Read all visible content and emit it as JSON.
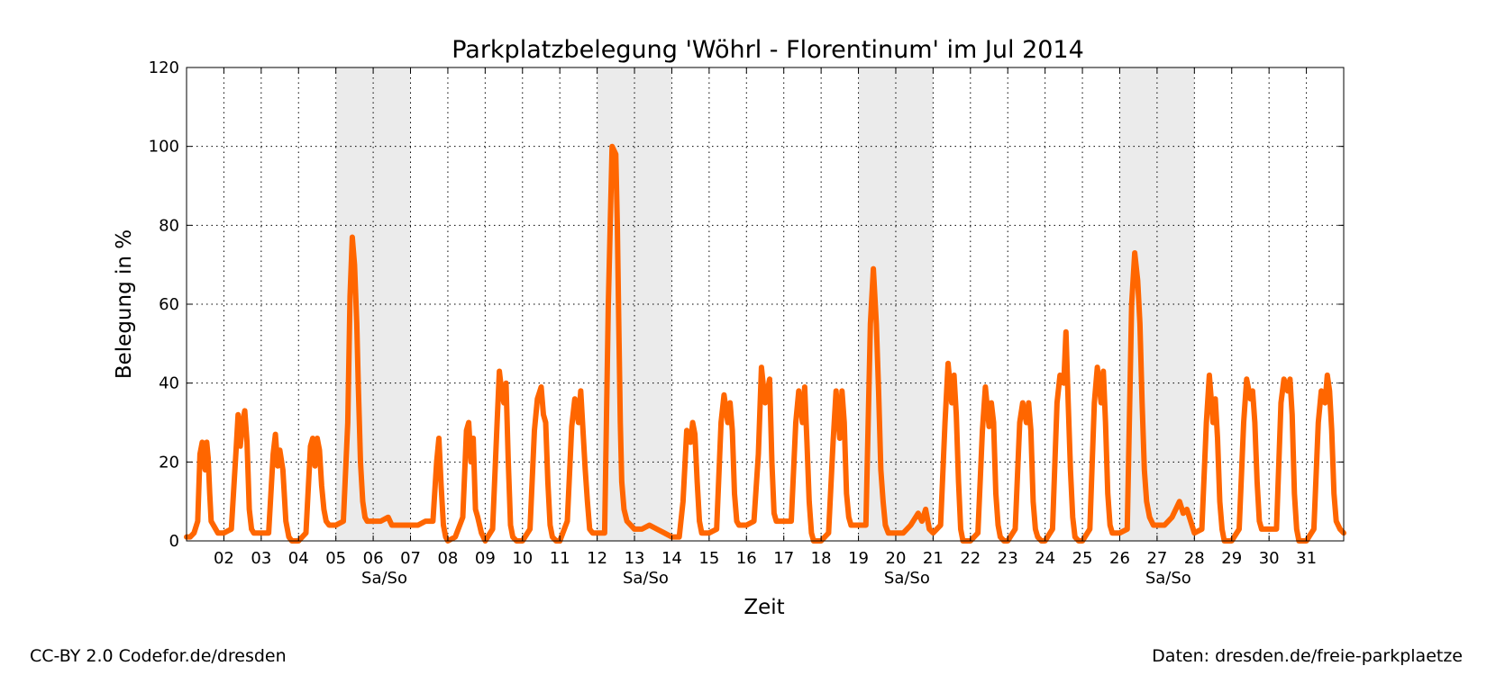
{
  "chart_data": {
    "type": "line",
    "title": "Parkplatzbelegung 'Wöhrl - Florentinum' im Jul 2014",
    "xlabel": "Zeit",
    "ylabel": "Belegung in %",
    "xlim": [
      1,
      32
    ],
    "ylim": [
      0,
      120
    ],
    "y_ticks": [
      0,
      20,
      40,
      60,
      80,
      100,
      120
    ],
    "x_tick_days": [
      2,
      3,
      4,
      5,
      6,
      7,
      8,
      9,
      10,
      11,
      12,
      13,
      14,
      15,
      16,
      17,
      18,
      19,
      20,
      21,
      22,
      23,
      24,
      25,
      26,
      27,
      28,
      29,
      30,
      31
    ],
    "x_tick_labels": [
      "02",
      "03",
      "04",
      "05",
      "06",
      "07",
      "08",
      "09",
      "10",
      "11",
      "12",
      "13",
      "14",
      "15",
      "16",
      "17",
      "18",
      "19",
      "20",
      "21",
      "22",
      "23",
      "24",
      "25",
      "26",
      "27",
      "28",
      "29",
      "30",
      "31"
    ],
    "grid": true,
    "weekend_label": "Sa/So",
    "weekends": [
      {
        "start": 5,
        "end": 7,
        "label_day": 6.3
      },
      {
        "start": 12,
        "end": 14,
        "label_day": 13.3
      },
      {
        "start": 19,
        "end": 21,
        "label_day": 20.3
      },
      {
        "start": 26,
        "end": 28,
        "label_day": 27.3
      }
    ],
    "series": [
      {
        "color": "#ff6600",
        "x": [
          1.0,
          1.1,
          1.2,
          1.3,
          1.36,
          1.42,
          1.46,
          1.5,
          1.54,
          1.58,
          1.62,
          1.66,
          1.72,
          1.78,
          1.84,
          1.92,
          2.0,
          2.2,
          2.32,
          2.38,
          2.44,
          2.5,
          2.56,
          2.62,
          2.68,
          2.74,
          2.8,
          2.9,
          3.0,
          3.2,
          3.32,
          3.38,
          3.44,
          3.5,
          3.58,
          3.66,
          3.74,
          3.82,
          3.92,
          4.0,
          4.2,
          4.32,
          4.38,
          4.44,
          4.5,
          4.56,
          4.62,
          4.68,
          4.74,
          4.82,
          4.92,
          5.0,
          5.2,
          5.32,
          5.38,
          5.44,
          5.5,
          5.56,
          5.6,
          5.66,
          5.72,
          5.78,
          5.84,
          5.9,
          6.0,
          6.2,
          6.4,
          6.5,
          6.56,
          6.62,
          6.7,
          6.8,
          7.0,
          7.2,
          7.4,
          7.6,
          7.7,
          7.76,
          7.82,
          7.88,
          7.94,
          8.0,
          8.2,
          8.4,
          8.5,
          8.56,
          8.62,
          8.68,
          8.74,
          8.8,
          8.9,
          9.0,
          9.2,
          9.32,
          9.38,
          9.44,
          9.5,
          9.56,
          9.62,
          9.68,
          9.74,
          9.84,
          9.92,
          10.0,
          10.2,
          10.32,
          10.4,
          10.5,
          10.56,
          10.62,
          10.68,
          10.74,
          10.8,
          10.9,
          11.0,
          11.2,
          11.32,
          11.4,
          11.5,
          11.56,
          11.62,
          11.68,
          11.74,
          11.8,
          11.88,
          11.96,
          12.0,
          12.2,
          12.3,
          12.4,
          12.5,
          12.54,
          12.58,
          12.62,
          12.66,
          12.72,
          12.8,
          12.9,
          13.0,
          13.2,
          13.4,
          13.6,
          13.8,
          14.0,
          14.2,
          14.3,
          14.4,
          14.5,
          14.56,
          14.62,
          14.68,
          14.74,
          14.8,
          14.9,
          15.0,
          15.2,
          15.32,
          15.4,
          15.5,
          15.56,
          15.62,
          15.68,
          15.74,
          15.8,
          15.9,
          16.0,
          16.2,
          16.32,
          16.4,
          16.5,
          16.56,
          16.62,
          16.68,
          16.74,
          16.8,
          16.9,
          17.0,
          17.2,
          17.32,
          17.4,
          17.5,
          17.56,
          17.62,
          17.68,
          17.74,
          17.8,
          17.9,
          18.0,
          18.2,
          18.32,
          18.4,
          18.5,
          18.56,
          18.62,
          18.68,
          18.74,
          18.8,
          18.9,
          19.0,
          19.2,
          19.32,
          19.4,
          19.48,
          19.54,
          19.6,
          19.66,
          19.72,
          19.8,
          19.9,
          20.0,
          20.2,
          20.4,
          20.6,
          20.7,
          20.8,
          20.9,
          21.0,
          21.2,
          21.32,
          21.4,
          21.5,
          21.56,
          21.62,
          21.68,
          21.74,
          21.8,
          21.9,
          22.0,
          22.2,
          22.32,
          22.4,
          22.5,
          22.56,
          22.62,
          22.68,
          22.74,
          22.8,
          22.9,
          23.0,
          23.2,
          23.32,
          23.4,
          23.5,
          23.56,
          23.62,
          23.68,
          23.74,
          23.8,
          23.9,
          24.0,
          24.2,
          24.32,
          24.4,
          24.5,
          24.56,
          24.62,
          24.68,
          24.74,
          24.8,
          24.9,
          25.0,
          25.2,
          25.32,
          25.4,
          25.5,
          25.56,
          25.62,
          25.68,
          25.74,
          25.8,
          25.9,
          26.0,
          26.2,
          26.32,
          26.4,
          26.48,
          26.54,
          26.6,
          26.66,
          26.72,
          26.8,
          26.9,
          27.0,
          27.2,
          27.4,
          27.6,
          27.7,
          27.8,
          27.9,
          28.0,
          28.2,
          28.32,
          28.4,
          28.5,
          28.56,
          28.62,
          28.68,
          28.74,
          28.8,
          28.9,
          29.0,
          29.2,
          29.32,
          29.4,
          29.5,
          29.56,
          29.62,
          29.68,
          29.74,
          29.8,
          29.9,
          30.0,
          30.2,
          30.32,
          30.4,
          30.5,
          30.56,
          30.62,
          30.68,
          30.74,
          30.8,
          30.9,
          31.0,
          31.2,
          31.32,
          31.4,
          31.5,
          31.56,
          31.62,
          31.68,
          31.74,
          31.8,
          31.9,
          32.0
        ],
        "y": [
          1,
          1,
          2,
          5,
          22,
          25,
          20,
          18,
          25,
          21,
          12,
          5,
          4,
          3,
          2,
          2,
          2,
          3,
          22,
          32,
          24,
          30,
          33,
          25,
          8,
          3,
          2,
          2,
          2,
          2,
          22,
          27,
          19,
          23,
          18,
          5,
          1,
          0,
          0,
          0,
          2,
          24,
          26,
          19,
          26,
          23,
          14,
          8,
          5,
          4,
          4,
          4,
          5,
          30,
          62,
          77,
          70,
          55,
          40,
          20,
          10,
          6,
          5,
          5,
          5,
          5,
          6,
          4,
          4,
          4,
          4,
          4,
          4,
          4,
          5,
          5,
          20,
          26,
          14,
          4,
          1,
          0,
          1,
          6,
          28,
          30,
          20,
          26,
          8,
          6,
          2,
          0,
          3,
          30,
          43,
          38,
          35,
          40,
          20,
          4,
          1,
          0,
          0,
          0,
          3,
          28,
          36,
          39,
          32,
          30,
          15,
          4,
          1,
          0,
          0,
          5,
          29,
          36,
          30,
          38,
          28,
          18,
          10,
          3,
          2,
          2,
          2,
          2,
          60,
          100,
          98,
          80,
          55,
          30,
          15,
          8,
          5,
          4,
          3,
          3,
          4,
          3,
          2,
          1,
          1,
          10,
          28,
          25,
          30,
          27,
          15,
          5,
          2,
          2,
          2,
          3,
          30,
          37,
          30,
          35,
          28,
          12,
          5,
          4,
          4,
          4,
          5,
          22,
          44,
          35,
          38,
          41,
          20,
          7,
          5,
          5,
          5,
          5,
          30,
          38,
          30,
          39,
          25,
          10,
          2,
          0,
          0,
          0,
          2,
          25,
          38,
          26,
          38,
          30,
          12,
          6,
          4,
          4,
          4,
          4,
          55,
          69,
          55,
          38,
          18,
          10,
          4,
          2,
          2,
          2,
          2,
          4,
          7,
          5,
          8,
          3,
          2,
          4,
          30,
          45,
          35,
          42,
          32,
          15,
          3,
          0,
          0,
          0,
          2,
          28,
          39,
          29,
          35,
          30,
          12,
          4,
          1,
          0,
          0,
          3,
          30,
          35,
          30,
          35,
          28,
          10,
          3,
          1,
          0,
          0,
          3,
          35,
          42,
          40,
          53,
          35,
          18,
          6,
          1,
          0,
          0,
          3,
          35,
          44,
          35,
          43,
          30,
          12,
          4,
          2,
          2,
          2,
          3,
          60,
          73,
          66,
          55,
          35,
          18,
          10,
          6,
          4,
          4,
          4,
          6,
          10,
          7,
          8,
          5,
          2,
          3,
          30,
          42,
          30,
          36,
          26,
          10,
          3,
          0,
          0,
          0,
          3,
          30,
          41,
          36,
          38,
          30,
          15,
          5,
          3,
          3,
          3,
          3,
          35,
          41,
          38,
          41,
          32,
          12,
          3,
          0,
          0,
          0,
          3,
          30,
          38,
          35,
          42,
          38,
          28,
          12,
          5,
          3,
          2
        ]
      }
    ]
  },
  "footer": {
    "left": "CC-BY 2.0 Codefor.de/dresden",
    "right": "Daten: dresden.de/freie-parkplaetze"
  }
}
